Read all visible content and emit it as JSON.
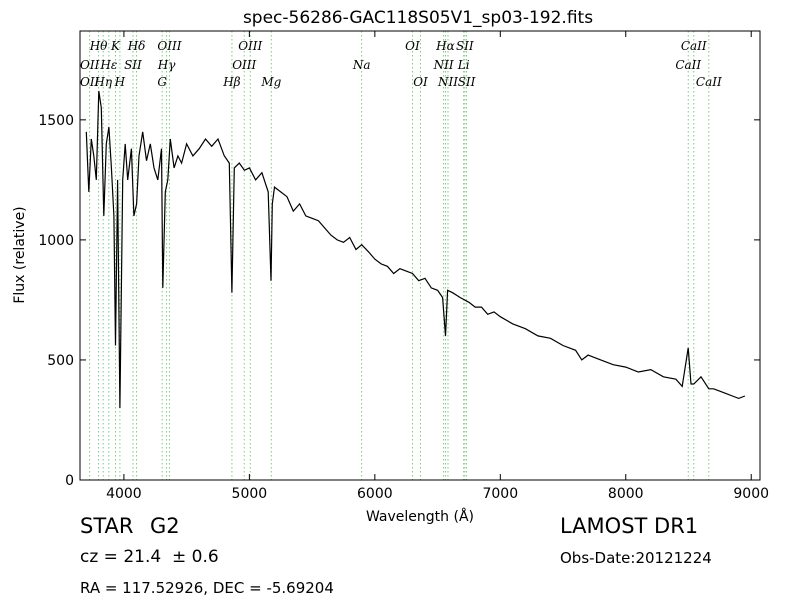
{
  "chart_data": {
    "type": "line",
    "title": "spec-56286-GAC118S05V1_sp03-192.fits",
    "xlabel": "Wavelength (Å)",
    "ylabel": "Flux (relative)",
    "xlim": [
      3650,
      9070
    ],
    "ylim": [
      0,
      1870
    ],
    "xticks": [
      4000,
      5000,
      6000,
      7000,
      8000,
      9000
    ],
    "yticks": [
      0,
      500,
      1000,
      1500
    ],
    "grid": false,
    "series": [
      {
        "color": "#000000",
        "x": [
          3700,
          3720,
          3740,
          3760,
          3780,
          3800,
          3820,
          3840,
          3860,
          3880,
          3900,
          3920,
          3933,
          3950,
          3968,
          3990,
          4010,
          4030,
          4060,
          4080,
          4101,
          4120,
          4150,
          4180,
          4210,
          4240,
          4270,
          4300,
          4310,
          4330,
          4350,
          4370,
          4400,
          4430,
          4460,
          4500,
          4550,
          4600,
          4650,
          4700,
          4750,
          4800,
          4840,
          4861,
          4880,
          4920,
          4960,
          5000,
          5050,
          5100,
          5150,
          5172,
          5183,
          5200,
          5250,
          5300,
          5350,
          5400,
          5450,
          5500,
          5550,
          5600,
          5650,
          5700,
          5750,
          5800,
          5850,
          5895,
          5950,
          6000,
          6050,
          6100,
          6150,
          6200,
          6250,
          6300,
          6350,
          6400,
          6450,
          6500,
          6540,
          6563,
          6580,
          6620,
          6680,
          6750,
          6800,
          6850,
          6900,
          6950,
          7000,
          7100,
          7200,
          7300,
          7400,
          7500,
          7600,
          7650,
          7700,
          7800,
          7900,
          8000,
          8100,
          8200,
          8300,
          8400,
          8450,
          8498,
          8520,
          8542,
          8600,
          8662,
          8700,
          8750,
          8800,
          8850,
          8900,
          8950
        ],
        "y": [
          1450,
          1200,
          1420,
          1350,
          1250,
          1620,
          1550,
          1100,
          1400,
          1470,
          1300,
          1100,
          560,
          1250,
          300,
          1250,
          1400,
          1250,
          1380,
          1100,
          1150,
          1350,
          1450,
          1330,
          1400,
          1300,
          1250,
          1380,
          800,
          1200,
          1250,
          1420,
          1300,
          1350,
          1320,
          1400,
          1350,
          1380,
          1420,
          1390,
          1420,
          1350,
          1320,
          780,
          1300,
          1320,
          1290,
          1300,
          1250,
          1280,
          1200,
          830,
          1150,
          1220,
          1200,
          1180,
          1120,
          1150,
          1100,
          1090,
          1080,
          1050,
          1020,
          1000,
          990,
          1010,
          960,
          980,
          950,
          920,
          900,
          890,
          860,
          880,
          870,
          860,
          830,
          840,
          800,
          790,
          760,
          600,
          790,
          780,
          760,
          740,
          720,
          720,
          690,
          700,
          680,
          650,
          630,
          600,
          590,
          560,
          540,
          500,
          520,
          500,
          480,
          470,
          450,
          460,
          430,
          420,
          390,
          550,
          400,
          400,
          430,
          380,
          380,
          370,
          360,
          350,
          340,
          350
        ]
      }
    ],
    "spectral_lines": [
      {
        "label": "Hθ",
        "lambda": 3798,
        "row": 1
      },
      {
        "label": "K",
        "lambda": 3933,
        "row": 1
      },
      {
        "label": "Hδ",
        "lambda": 4101,
        "row": 1
      },
      {
        "label": "OIII",
        "lambda": 4363,
        "row": 1
      },
      {
        "label": "OIII",
        "lambda": 5007,
        "row": 1
      },
      {
        "label": "OI",
        "lambda": 6300,
        "row": 1
      },
      {
        "label": "Hα",
        "lambda": 6563,
        "row": 1
      },
      {
        "label": "SII",
        "lambda": 6717,
        "row": 1
      },
      {
        "label": "CaII",
        "lambda": 8542,
        "row": 1
      },
      {
        "label": "OII",
        "lambda": 3727,
        "row": 2
      },
      {
        "label": "Hε",
        "lambda": 3880,
        "row": 2
      },
      {
        "label": "SII",
        "lambda": 4072,
        "row": 2
      },
      {
        "label": "Hγ",
        "lambda": 4340,
        "row": 2
      },
      {
        "label": "OIII",
        "lambda": 4959,
        "row": 2
      },
      {
        "label": "Na",
        "lambda": 5895,
        "row": 2
      },
      {
        "label": "NII",
        "lambda": 6548,
        "row": 2
      },
      {
        "label": "Li",
        "lambda": 6708,
        "row": 2
      },
      {
        "label": "CaII",
        "lambda": 8498,
        "row": 2
      },
      {
        "label": "OII",
        "lambda": 3727,
        "row": 3
      },
      {
        "label": "Hη",
        "lambda": 3835,
        "row": 3
      },
      {
        "label": "H",
        "lambda": 3968,
        "row": 3
      },
      {
        "label": "G",
        "lambda": 4305,
        "row": 3
      },
      {
        "label": "Hβ",
        "lambda": 4861,
        "row": 3
      },
      {
        "label": "Mg",
        "lambda": 5175,
        "row": 3
      },
      {
        "label": "OI",
        "lambda": 6364,
        "row": 3
      },
      {
        "label": "NII",
        "lambda": 6583,
        "row": 3
      },
      {
        "label": "SII",
        "lambda": 6731,
        "row": 3
      },
      {
        "label": "CaII",
        "lambda": 8662,
        "row": 3
      }
    ],
    "line_marker_color": "#7fc97f"
  },
  "info": {
    "class": "STAR",
    "subclass": "G2",
    "survey": "LAMOST DR1",
    "cz": "cz = 21.4  ± 0.6",
    "obs_date": "Obs-Date:20121224",
    "coords": "RA = 117.52926, DEC = -5.69204"
  }
}
